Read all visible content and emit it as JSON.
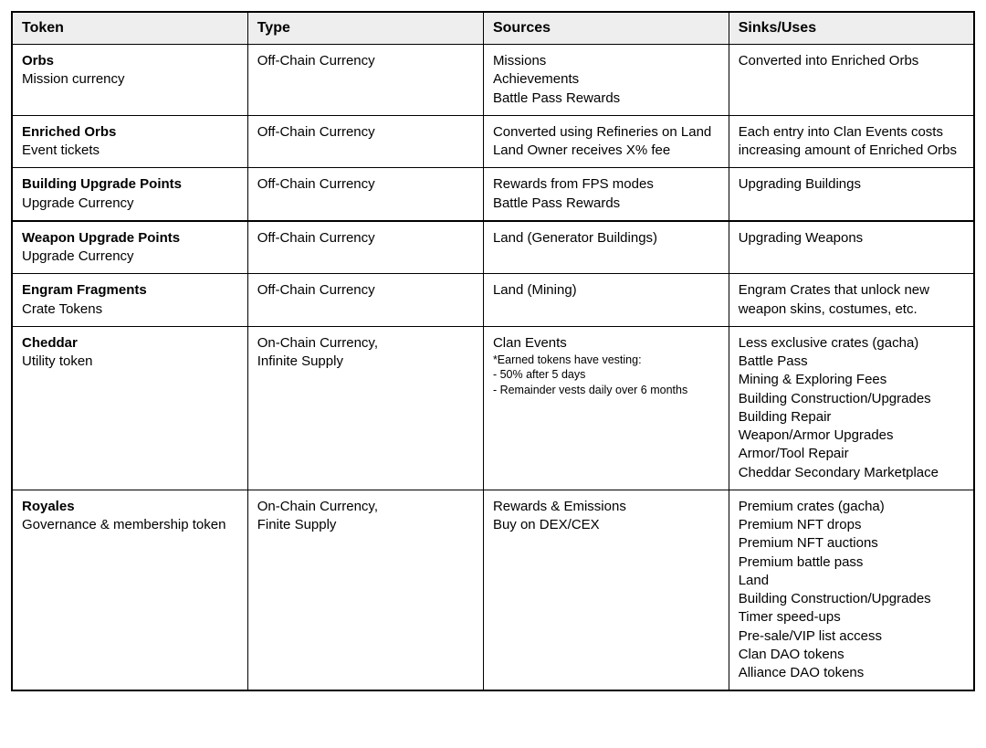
{
  "table": {
    "columns": [
      "Token",
      "Type",
      "Sources",
      "Sinks/Uses"
    ],
    "header_bg": "#eeeeee",
    "border_color": "#000000",
    "rows": [
      {
        "token_name": "Orbs",
        "token_sub": "Mission currency",
        "type": [
          "Off-Chain Currency"
        ],
        "sources": [
          "Missions",
          "Achievements",
          "Battle Pass Rewards"
        ],
        "sources_note": [],
        "sinks": [
          "Converted into Enriched Orbs"
        ]
      },
      {
        "token_name": "Enriched Orbs",
        "token_sub": "Event tickets",
        "type": [
          "Off-Chain Currency"
        ],
        "sources": [
          "Converted using Refineries on Land",
          "Land Owner receives X% fee"
        ],
        "sources_note": [],
        "sinks": [
          "Each entry into Clan Events costs increasing amount of Enriched Orbs"
        ]
      },
      {
        "token_name": "Building Upgrade Points",
        "token_sub": "Upgrade Currency",
        "type": [
          "Off-Chain Currency"
        ],
        "sources": [
          "Rewards from FPS modes",
          "Battle Pass Rewards"
        ],
        "sources_note": [],
        "sinks": [
          "Upgrading Buildings"
        ]
      },
      {
        "token_name": "Weapon Upgrade Points",
        "token_sub": "Upgrade Currency",
        "type": [
          "Off-Chain Currency"
        ],
        "sources": [
          "Land (Generator Buildings)"
        ],
        "sources_note": [],
        "sinks": [
          "Upgrading Weapons"
        ]
      },
      {
        "token_name": "Engram Fragments",
        "token_sub": "Crate Tokens",
        "type": [
          "Off-Chain Currency"
        ],
        "sources": [
          "Land (Mining)"
        ],
        "sources_note": [],
        "sinks": [
          "Engram Crates that unlock new weapon skins, costumes, etc."
        ]
      },
      {
        "token_name": "Cheddar",
        "token_sub": "Utility token",
        "type": [
          "On-Chain Currency,",
          "Infinite Supply"
        ],
        "sources": [
          "Clan Events"
        ],
        "sources_note": [
          "*Earned tokens have vesting:",
          "- 50% after 5 days",
          "- Remainder vests daily over 6 months"
        ],
        "sinks": [
          "Less exclusive crates (gacha)",
          "Battle Pass",
          "Mining & Exploring Fees",
          "Building Construction/Upgrades",
          "Building Repair",
          "Weapon/Armor Upgrades",
          "Armor/Tool Repair",
          "Cheddar Secondary Marketplace"
        ]
      },
      {
        "token_name": "Royales",
        "token_sub": "Governance & membership token",
        "type": [
          "On-Chain Currency,",
          "Finite Supply"
        ],
        "sources": [
          "Rewards & Emissions",
          "Buy on DEX/CEX"
        ],
        "sources_note": [],
        "sinks": [
          "Premium crates (gacha)",
          "Premium NFT drops",
          "Premium NFT auctions",
          "Premium battle pass",
          "Land",
          "Building Construction/Upgrades",
          "Timer speed-ups",
          "Pre-sale/VIP list access",
          "Clan DAO tokens",
          "Alliance DAO tokens"
        ]
      }
    ]
  }
}
